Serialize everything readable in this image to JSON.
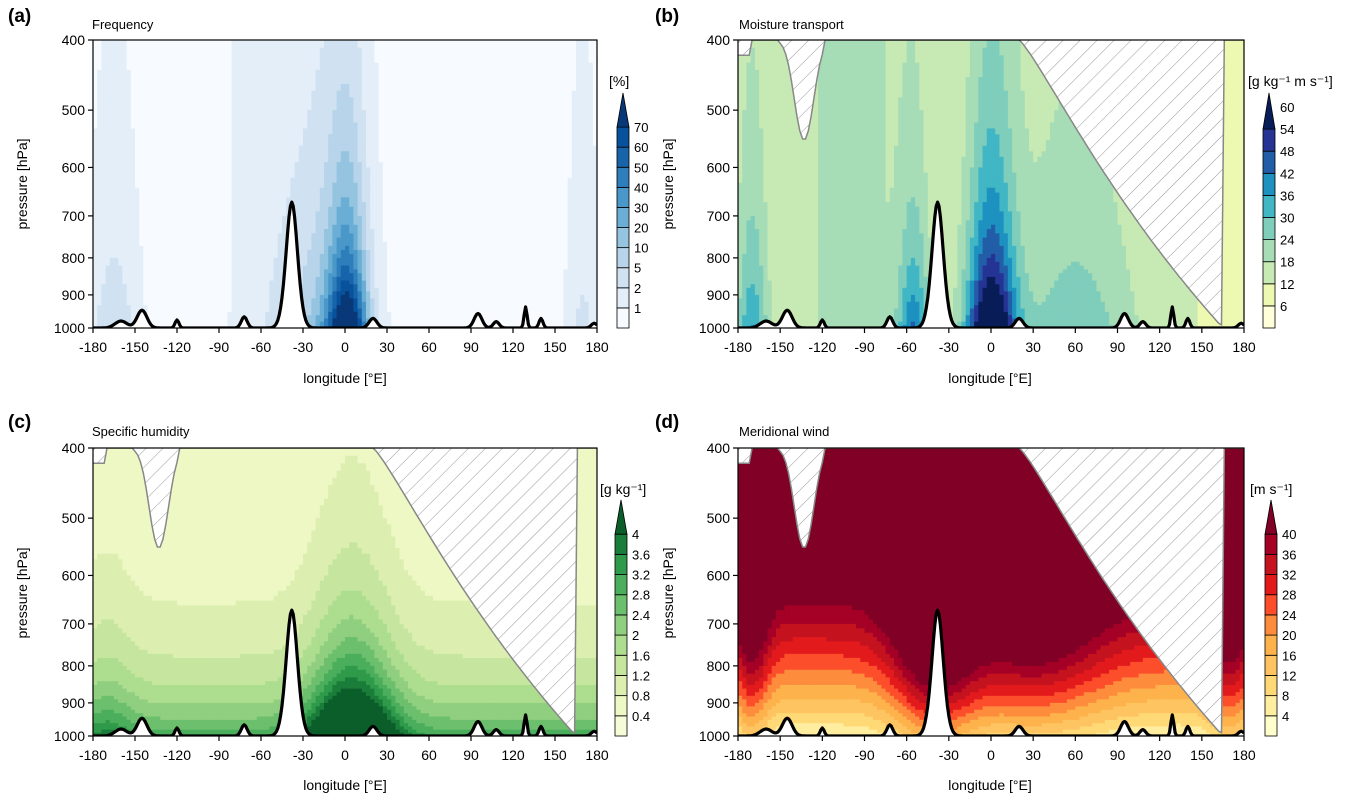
{
  "figure": {
    "xlabel": "longitude [°E]",
    "ylabel": "pressure [hPa]",
    "x_ticks": [
      "-180",
      "-150",
      "-120",
      "-90",
      "-60",
      "-30",
      "0",
      "30",
      "60",
      "90",
      "120",
      "150",
      "180"
    ],
    "y_ticks": [
      "400",
      "500",
      "600",
      "700",
      "800",
      "900",
      "1000"
    ]
  },
  "chart_data": [
    {
      "type": "heatmap",
      "panel": "(a)",
      "title": "Frequency",
      "unit": "[%]",
      "xlim": [
        -180,
        180
      ],
      "ylim": [
        1000,
        400
      ],
      "colorbar_ticks": [
        "1",
        "2",
        "5",
        "10",
        "20",
        "30",
        "40",
        "50",
        "60",
        "70"
      ],
      "colors": [
        "#f7fbff",
        "#e3eef8",
        "#d0e1f2",
        "#b7d4ea",
        "#94c4df",
        "#6aaed6",
        "#4a98c9",
        "#2e7ebc",
        "#1764ab",
        "#08519c",
        "#083877"
      ],
      "shown_range": [
        0,
        75
      ]
    },
    {
      "type": "heatmap",
      "panel": "(b)",
      "title": "Moisture transport",
      "unit": "[g kg⁻¹ m s⁻¹]",
      "xlim": [
        -180,
        180
      ],
      "ylim": [
        1000,
        400
      ],
      "colorbar_ticks": [
        "6",
        "12",
        "18",
        "24",
        "30",
        "36",
        "42",
        "48",
        "54",
        "60"
      ],
      "colors": [
        "#ffffd9",
        "#edf8b1",
        "#c7e9b4",
        "#a6dcb6",
        "#7fcdbb",
        "#41b6c4",
        "#1d91c0",
        "#225ea8",
        "#253494",
        "#081d58"
      ],
      "shown_range": [
        0,
        62
      ]
    },
    {
      "type": "heatmap",
      "panel": "(c)",
      "title": "Specific humidity",
      "unit": "[g kg⁻¹]",
      "xlim": [
        -180,
        180
      ],
      "ylim": [
        1000,
        400
      ],
      "colorbar_ticks": [
        "0.4",
        "0.8",
        "1.2",
        "1.6",
        "2",
        "2.4",
        "2.8",
        "3.2",
        "3.6",
        "4"
      ],
      "colors": [
        "#f7fcd8",
        "#eef8c4",
        "#dcefb0",
        "#c6e6a0",
        "#addd8e",
        "#8fcf7f",
        "#6cbf6d",
        "#4bae5c",
        "#2e9a4a",
        "#1a7d3a",
        "#0b5e2a"
      ],
      "shown_range": [
        0,
        4.2
      ]
    },
    {
      "type": "heatmap",
      "panel": "(d)",
      "title": "Meridional wind",
      "unit": "[m s⁻¹]",
      "xlim": [
        -180,
        180
      ],
      "ylim": [
        1000,
        400
      ],
      "colorbar_ticks": [
        "4",
        "8",
        "12",
        "16",
        "20",
        "24",
        "28",
        "32",
        "36",
        "40"
      ],
      "colors": [
        "#ffffcc",
        "#ffeda0",
        "#fed976",
        "#fec461",
        "#feb24c",
        "#fd8d3c",
        "#fc4e2a",
        "#e31a1c",
        "#c4121f",
        "#a50026",
        "#800026"
      ],
      "shown_range": [
        0,
        42
      ]
    }
  ]
}
